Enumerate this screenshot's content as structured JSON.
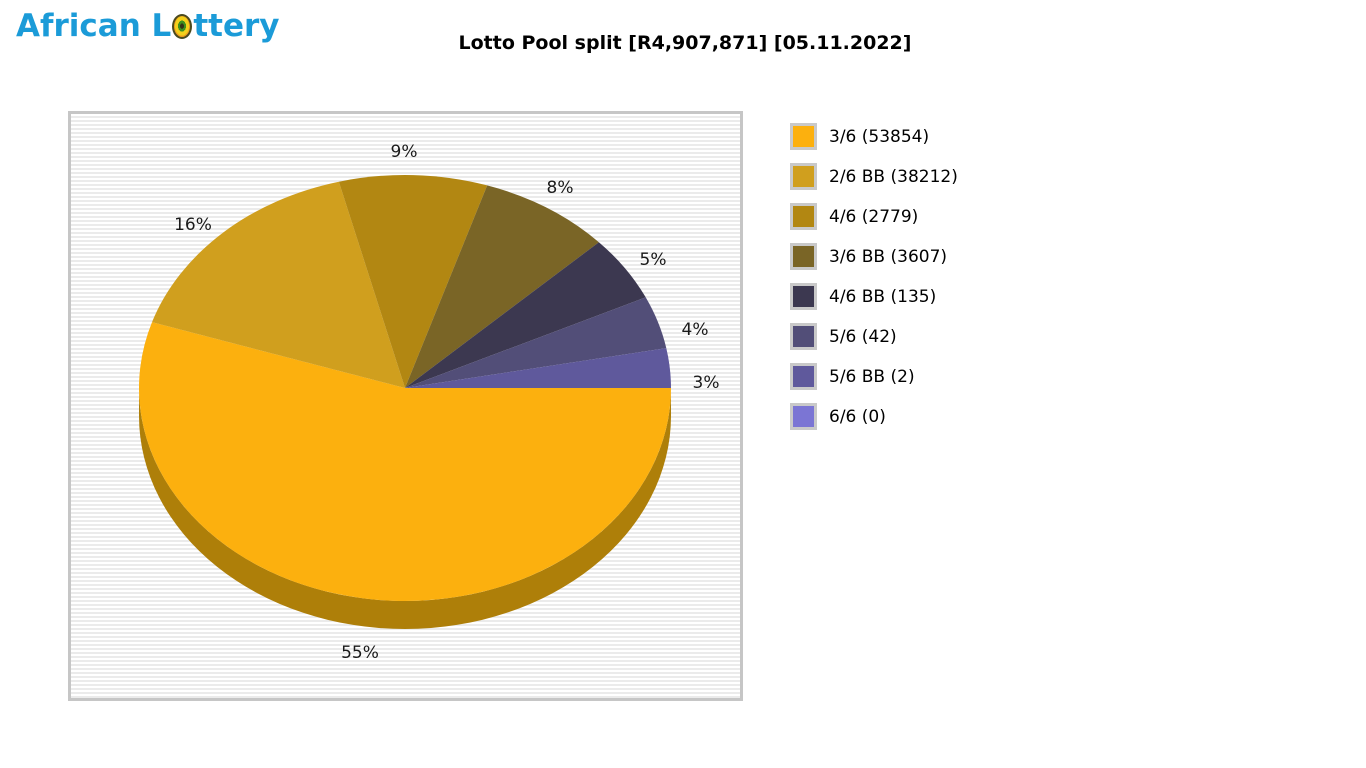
{
  "logo": {
    "text_before": "African L",
    "text_after": "ttery",
    "color": "#1b9bd8",
    "ball_icon": "lottery-ball"
  },
  "title": "Lotto Pool split [R4,907,871] [05.11.2022]",
  "chart_data": {
    "type": "pie",
    "title": "Lotto Pool split [R4,907,871] [05.11.2022]",
    "pool_amount": "R4,907,871",
    "draw_date": "05.11.2022",
    "legend_position": "right",
    "style": "3d-pie, starts at east going clockwise through bottom",
    "rim_color": "#ae7f09",
    "plot_background": "horizontal light-gray stripes",
    "slices": [
      {
        "label": "3/6",
        "count": 53854,
        "percent": 55,
        "color": "#fcb00e",
        "display": "3/6 (53854)"
      },
      {
        "label": "2/6 BB",
        "count": 38212,
        "percent": 16,
        "color": "#d09f1e",
        "display": "2/6 BB (38212)"
      },
      {
        "label": "4/6",
        "count": 2779,
        "percent": 9,
        "color": "#b28712",
        "display": "4/6 (2779)"
      },
      {
        "label": "3/6 BB",
        "count": 3607,
        "percent": 8,
        "color": "#7a6526",
        "display": "3/6 BB (3607)"
      },
      {
        "label": "4/6 BB",
        "count": 135,
        "percent": 5,
        "color": "#3c3850",
        "display": "4/6 BB (135)"
      },
      {
        "label": "5/6",
        "count": 42,
        "percent": 4,
        "color": "#524e78",
        "display": "5/6 (42)"
      },
      {
        "label": "5/6 BB",
        "count": 2,
        "percent": 3,
        "color": "#5f599c",
        "display": "5/6 BB (2)"
      },
      {
        "label": "6/6",
        "count": 0,
        "percent": 0,
        "color": "#7b75d4",
        "display": "6/6 (0)"
      }
    ]
  }
}
